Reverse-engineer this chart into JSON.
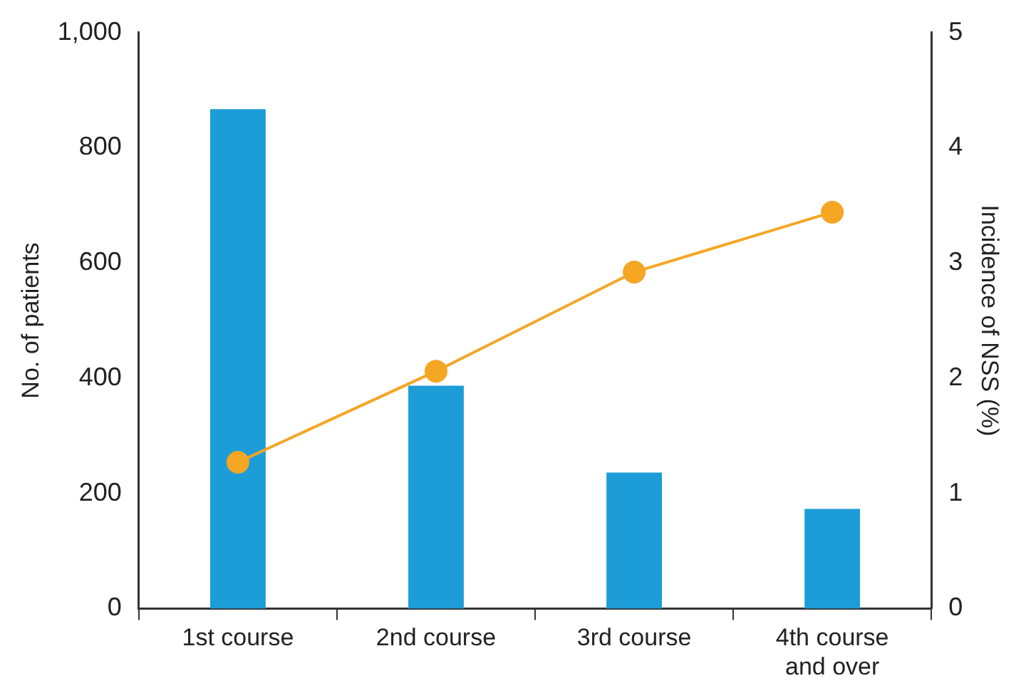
{
  "chart_data": {
    "type": "bar",
    "xlabel": null,
    "ylabel": "No. of patients",
    "y2label": "Incidence of NSS (%)",
    "categories": [
      "1st course",
      "2nd course",
      "3rd course",
      "4th course and over"
    ],
    "series": [
      {
        "color": "#1d9dd8",
        "values": [
          867,
          387,
          236,
          173
        ]
      },
      {
        "type": "line",
        "axis": "y2",
        "color": "#f5a623",
        "values": [
          1.27,
          2.06,
          2.92,
          3.44
        ]
      }
    ],
    "ylim": [
      0,
      1000
    ],
    "yticks": [
      0,
      200,
      400,
      600,
      800,
      {
        "value": 1000,
        "label": "1,000"
      }
    ],
    "y2lim": [
      0,
      5
    ],
    "y2ticks": [
      0,
      1,
      2,
      3,
      4,
      5
    ],
    "grid": false,
    "legend": false,
    "marker": "circle",
    "line_style": "solid"
  }
}
